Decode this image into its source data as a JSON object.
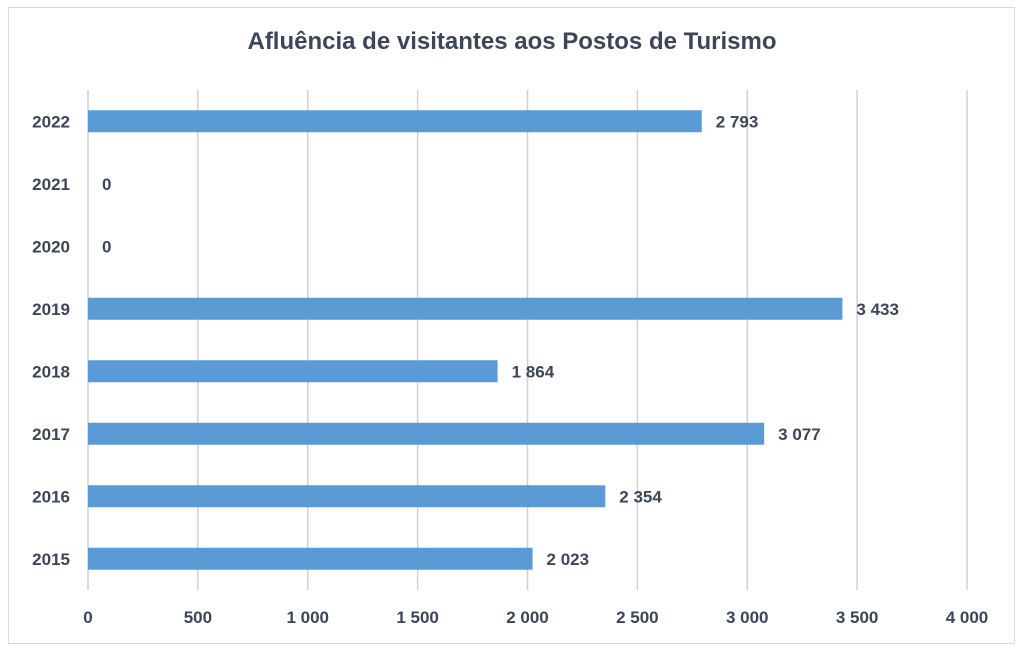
{
  "chart_data": {
    "type": "bar",
    "orientation": "horizontal",
    "title": "Afluência de visitantes aos Postos de Turismo",
    "categories": [
      "2015",
      "2016",
      "2017",
      "2018",
      "2019",
      "2020",
      "2021",
      "2022"
    ],
    "values": [
      2023,
      2354,
      3077,
      1864,
      3433,
      0,
      0,
      2793
    ],
    "data_labels": [
      "2 023",
      "2 354",
      "3 077",
      "1 864",
      "3 433",
      "0",
      "0",
      "2 793"
    ],
    "xlim": [
      0,
      4000
    ],
    "xticks": [
      0,
      500,
      1000,
      1500,
      2000,
      2500,
      3000,
      3500,
      4000
    ],
    "xtick_labels": [
      "0",
      "500",
      "1 000",
      "1 500",
      "2 000",
      "2 500",
      "3 000",
      "3 500",
      "4 000"
    ],
    "grid": "vertical",
    "legend": "none",
    "bar_color": "#5b9bd5",
    "grid_color": "#d0d0d0",
    "text_color": "#3b4658"
  }
}
